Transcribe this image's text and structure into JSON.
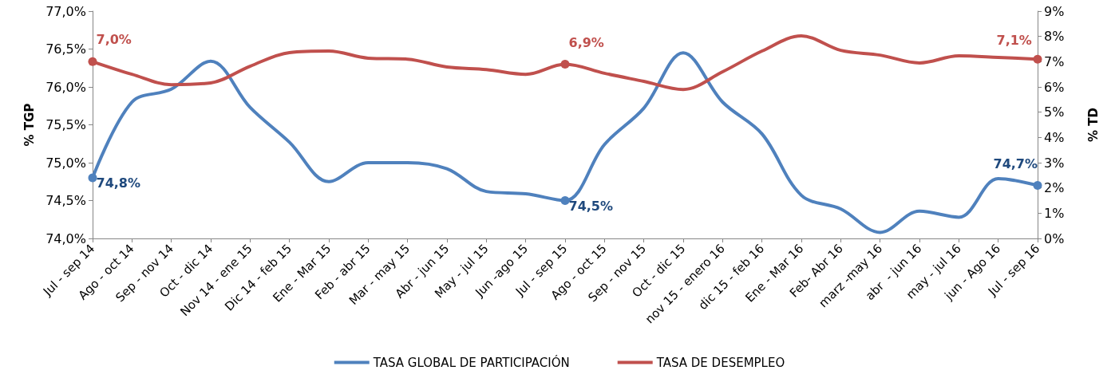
{
  "chart_data": {
    "type": "line",
    "ylabel": "% TGP",
    "y2label": "% TD",
    "categories": [
      "Jul - sep 14",
      "Ago - oct 14",
      "Sep - nov 14",
      "Oct - dic 14",
      "Nov 14 - ene 15",
      "Dic 14 - feb 15",
      "Ene - Mar 15",
      "Feb - abr 15",
      "Mar - may 15",
      "Abr - jun 15",
      "May - jul 15",
      "Jun -ago 15",
      "Jul - sep 15",
      "Ago - oct 15",
      "Sep - nov 15",
      "Oct - dic 15",
      "nov 15 - enero 16",
      "dic 15 - feb 16",
      "Ene - Mar 16",
      "Feb- Abr 16",
      "marz -may 16",
      "abr  - jun 16",
      "may - jul 16",
      "jun - Ago 16",
      "Jul - sep 16"
    ],
    "series": [
      {
        "name": "TASA GLOBAL DE PARTICIPACIÓN",
        "color": "#4f81bd",
        "values": [
          74.8,
          75.8,
          75.97,
          76.34,
          75.73,
          75.27,
          74.75,
          75.0,
          75.0,
          74.92,
          74.62,
          74.59,
          74.5,
          75.24,
          75.72,
          76.45,
          75.8,
          75.38,
          74.57,
          74.39,
          74.08,
          74.36,
          74.28,
          74.79,
          74.7
        ],
        "value_labels": [
          "74,8%",
          null,
          null,
          null,
          null,
          null,
          null,
          null,
          null,
          null,
          null,
          null,
          "74,5%",
          null,
          null,
          null,
          null,
          null,
          null,
          null,
          null,
          null,
          null,
          null,
          "74,7%"
        ]
      },
      {
        "name": "TASA DE DESEMPLEO",
        "color": "#c0504d",
        "axis": "y2",
        "values": [
          7.0,
          6.5,
          6.09,
          6.16,
          6.82,
          7.36,
          7.42,
          7.14,
          7.1,
          6.79,
          6.69,
          6.5,
          6.9,
          6.54,
          6.22,
          5.9,
          6.6,
          7.42,
          8.02,
          7.45,
          7.26,
          6.95,
          7.23,
          7.17,
          7.1
        ],
        "value_labels": [
          "7,0%",
          null,
          null,
          null,
          null,
          null,
          null,
          null,
          null,
          null,
          null,
          null,
          "6,9%",
          null,
          null,
          null,
          null,
          null,
          null,
          null,
          null,
          null,
          null,
          null,
          "7,1%"
        ]
      }
    ],
    "ylim": [
      74.0,
      77.0
    ],
    "yticks": [
      {
        "value": 74.0,
        "label": "74,0%"
      },
      {
        "value": 74.5,
        "label": "74,5%"
      },
      {
        "value": 75.0,
        "label": "75,0%"
      },
      {
        "value": 75.5,
        "label": "75,5%"
      },
      {
        "value": 76.0,
        "label": "76,0%"
      },
      {
        "value": 76.5,
        "label": "76,5%"
      },
      {
        "value": 77.0,
        "label": "77,0%"
      }
    ],
    "y2lim": [
      0,
      9
    ],
    "y2ticks": [
      {
        "value": 0,
        "label": "0%"
      },
      {
        "value": 1,
        "label": "1%"
      },
      {
        "value": 2,
        "label": "2%"
      },
      {
        "value": 3,
        "label": "3%"
      },
      {
        "value": 4,
        "label": "4%"
      },
      {
        "value": 5,
        "label": "5%"
      },
      {
        "value": 6,
        "label": "6%"
      },
      {
        "value": 7,
        "label": "7%"
      },
      {
        "value": 8,
        "label": "8%"
      },
      {
        "value": 9,
        "label": "9%"
      }
    ],
    "grid": false,
    "legend": "bottom",
    "line_style": "solid"
  }
}
